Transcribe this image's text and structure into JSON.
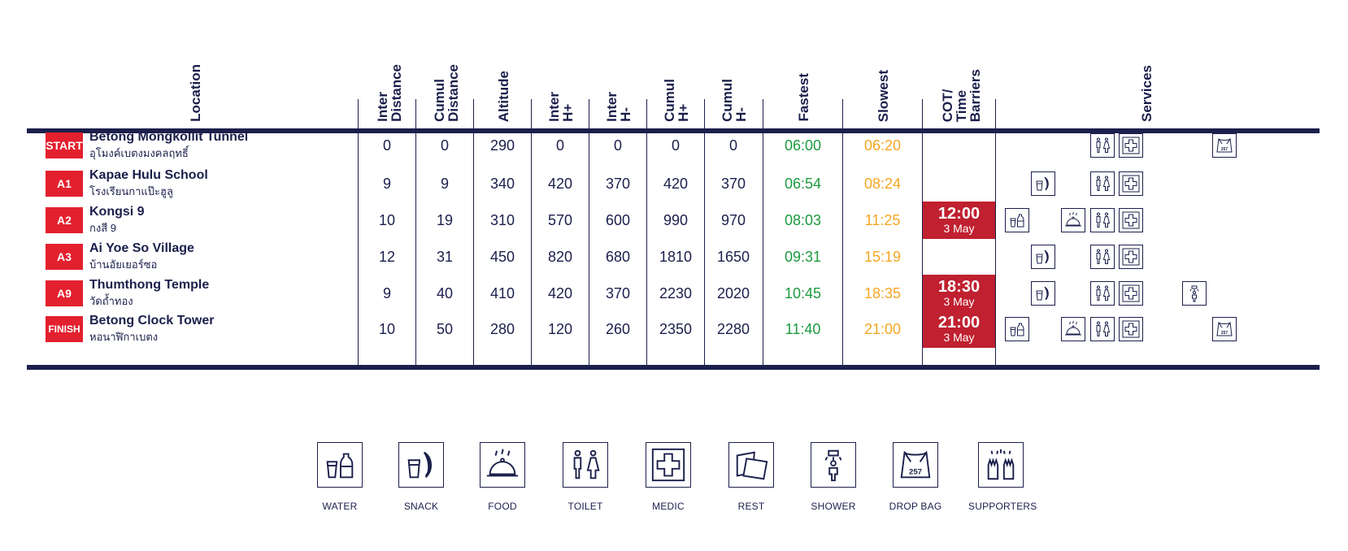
{
  "headers": {
    "location": "Location",
    "inter_distance": "Inter\nDistance",
    "cumul_distance": "Cumul\nDistance",
    "altitude": "Altitude",
    "inter_hplus": "Inter\nH+",
    "inter_hminus": "Inter\nH-",
    "cumul_hplus": "Cumul\nH+",
    "cumul_hminus": "Cumul\nH-",
    "fastest": "Fastest",
    "slowest": "Slowest",
    "cot": "COT/\nTime\nBarriers",
    "services": "Services"
  },
  "rows": [
    {
      "badge": "START",
      "name": "Betong Mongkollit Tunnel",
      "thai": "อุโมงค์เบตงมงคลฤทธิ์",
      "inter_d": "0",
      "cumul_d": "0",
      "alt": "290",
      "inter_hp": "0",
      "inter_hm": "0",
      "cumul_hp": "0",
      "cumul_hm": "0",
      "fast": "06:00",
      "slow": "06:20",
      "cot_time": "",
      "cot_date": "",
      "services": [
        "toilet-icon",
        "medic-icon",
        "drop-bag-icon"
      ]
    },
    {
      "badge": "A1",
      "name": "Kapae Hulu School",
      "thai": "โรงเรียนกาแป๊ะฮูลู",
      "inter_d": "9",
      "cumul_d": "9",
      "alt": "340",
      "inter_hp": "420",
      "inter_hm": "370",
      "cumul_hp": "420",
      "cumul_hm": "370",
      "fast": "06:54",
      "slow": "08:24",
      "cot_time": "",
      "cot_date": "",
      "services": [
        "snack-icon",
        "toilet-icon",
        "medic-icon"
      ]
    },
    {
      "badge": "A2",
      "name": "Kongsi 9",
      "thai": "กงสี 9",
      "inter_d": "10",
      "cumul_d": "19",
      "alt": "310",
      "inter_hp": "570",
      "inter_hm": "600",
      "cumul_hp": "990",
      "cumul_hm": "970",
      "fast": "08:03",
      "slow": "11:25",
      "cot_time": "12:00",
      "cot_date": "3 May",
      "services": [
        "water-icon",
        "food-icon",
        "toilet-icon",
        "medic-icon"
      ]
    },
    {
      "badge": "A3",
      "name": "Ai Yoe So Village",
      "thai": "บ้านอัยเยอร์ซอ",
      "inter_d": "12",
      "cumul_d": "31",
      "alt": "450",
      "inter_hp": "820",
      "inter_hm": "680",
      "cumul_hp": "1810",
      "cumul_hm": "1650",
      "fast": "09:31",
      "slow": "15:19",
      "cot_time": "",
      "cot_date": "",
      "services": [
        "snack-icon",
        "toilet-icon",
        "medic-icon"
      ]
    },
    {
      "badge": "A9",
      "name": "Thumthong Temple",
      "thai": "วัดถ้ำทอง",
      "inter_d": "9",
      "cumul_d": "40",
      "alt": "410",
      "inter_hp": "420",
      "inter_hm": "370",
      "cumul_hp": "2230",
      "cumul_hm": "2020",
      "fast": "10:45",
      "slow": "18:35",
      "cot_time": "18:30",
      "cot_date": "3 May",
      "services": [
        "snack-icon",
        "toilet-icon",
        "medic-icon",
        "shower-icon"
      ]
    },
    {
      "badge": "FINISH",
      "name": "Betong Clock Tower",
      "thai": "หอนาฬิกาเบตง",
      "inter_d": "10",
      "cumul_d": "50",
      "alt": "280",
      "inter_hp": "120",
      "inter_hm": "260",
      "cumul_hp": "2350",
      "cumul_hm": "2280",
      "fast": "11:40",
      "slow": "21:00",
      "cot_time": "21:00",
      "cot_date": "3 May",
      "services": [
        "water-icon",
        "food-icon",
        "toilet-icon",
        "medic-icon",
        "drop-bag-icon"
      ]
    }
  ],
  "legend": [
    {
      "icon": "water-icon",
      "label": "WATER"
    },
    {
      "icon": "snack-icon",
      "label": "SNACK"
    },
    {
      "icon": "food-icon",
      "label": "FOOD"
    },
    {
      "icon": "toilet-icon",
      "label": "TOILET"
    },
    {
      "icon": "medic-icon",
      "label": "MEDIC"
    },
    {
      "icon": "rest-icon",
      "label": "REST"
    },
    {
      "icon": "shower-icon",
      "label": "SHOWER"
    },
    {
      "icon": "drop-bag-icon",
      "label": "DROP BAG"
    },
    {
      "icon": "supporters-icon",
      "label": "SUPPORTERS"
    }
  ],
  "drop_bag_number": "257",
  "colors": {
    "navy": "#1b1f4b",
    "badge_red": "#e3202e",
    "cot_red": "#c0202f",
    "fastest_green": "#1c9a3f",
    "slowest_orange": "#f5a623"
  }
}
